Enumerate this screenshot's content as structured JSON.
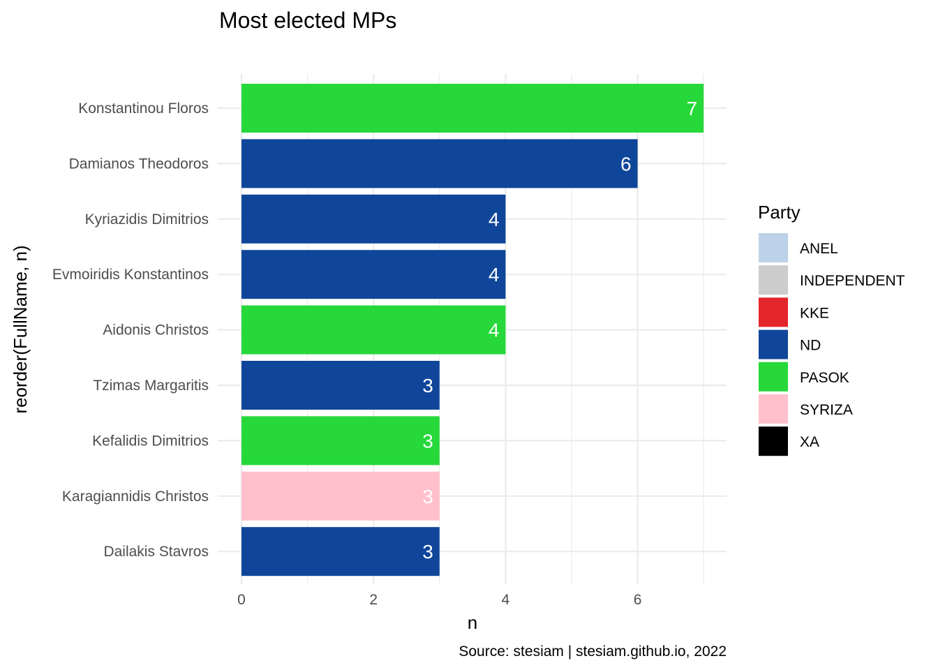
{
  "chart_data": {
    "type": "bar",
    "orientation": "horizontal",
    "title": "Most elected MPs",
    "xlabel": "n",
    "ylabel": "reorder(FullName, n)",
    "caption": "Source: stesiam | stesiam.github.io, 2022",
    "xlim": [
      0,
      7
    ],
    "x_ticks": [
      0,
      2,
      4,
      6
    ],
    "grid": true,
    "legend_position": "right",
    "legend_title": "Party",
    "categories": [
      "Konstantinou Floros",
      "Damianos Theodoros",
      "Kyriazidis Dimitrios",
      "Evmoiridis Konstantinos",
      "Aidonis Christos",
      "Tzimas Margaritis",
      "Kefalidis Dimitrios",
      "Karagiannidis Christos",
      "Dailakis Stavros"
    ],
    "values": [
      7,
      6,
      4,
      4,
      4,
      3,
      3,
      3,
      3
    ],
    "party": [
      "PASOK",
      "ND",
      "ND",
      "ND",
      "PASOK",
      "ND",
      "PASOK",
      "SYRIZA",
      "ND"
    ],
    "legend": [
      {
        "name": "ANEL",
        "color": "#bcd2e8"
      },
      {
        "name": "INDEPENDENT",
        "color": "#cccccc"
      },
      {
        "name": "KKE",
        "color": "#e3262c"
      },
      {
        "name": "ND",
        "color": "#10469a"
      },
      {
        "name": "PASOK",
        "color": "#26d83a"
      },
      {
        "name": "SYRIZA",
        "color": "#ffc0cb"
      },
      {
        "name": "XA",
        "color": "#000000"
      }
    ]
  }
}
